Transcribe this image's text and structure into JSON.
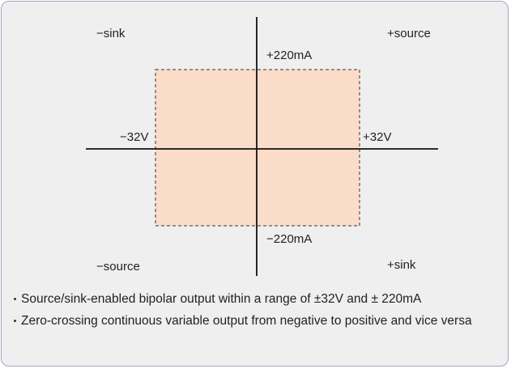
{
  "quadrants": {
    "top_left": "−sink",
    "top_right": "+source",
    "bottom_left": "−source",
    "bottom_right": "+sink"
  },
  "axes": {
    "current_max": "+220mA",
    "current_min": "−220mA",
    "voltage_min": "−32V",
    "voltage_max": "+32V"
  },
  "notes": [
    "Source/sink-enabled bipolar output within a range of ±32V and ± 220mA",
    "Zero-crossing continuous variable output from negative to positive and vice versa"
  ]
}
